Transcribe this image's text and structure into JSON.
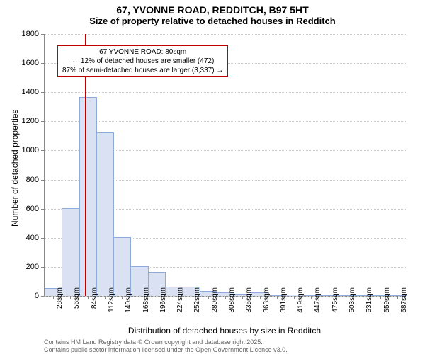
{
  "title": "67, YVONNE ROAD, REDDITCH, B97 5HT",
  "subtitle": "Size of property relative to detached houses in Redditch",
  "ylabel": "Number of detached properties",
  "xlabel": "Distribution of detached houses by size in Redditch",
  "footer_line1": "Contains HM Land Registry data © Crown copyright and database right 2025.",
  "footer_line2": "Contains public sector information licensed under the Open Government Licence v3.0.",
  "chart": {
    "type": "histogram",
    "ylim": [
      0,
      1800
    ],
    "yticks": [
      0,
      200,
      400,
      600,
      800,
      1000,
      1200,
      1400,
      1600,
      1800
    ],
    "xticks": [
      "28sqm",
      "56sqm",
      "84sqm",
      "112sqm",
      "140sqm",
      "168sqm",
      "196sqm",
      "224sqm",
      "252sqm",
      "280sqm",
      "308sqm",
      "335sqm",
      "363sqm",
      "391sqm",
      "419sqm",
      "447sqm",
      "475sqm",
      "503sqm",
      "531sqm",
      "559sqm",
      "587sqm"
    ],
    "values": [
      50,
      600,
      1360,
      1120,
      400,
      200,
      160,
      60,
      60,
      30,
      20,
      10,
      20,
      0,
      5,
      0,
      0,
      0,
      0,
      0,
      0
    ],
    "bar_fill": "#d9e1f2",
    "bar_stroke": "#8ea9db",
    "grid_color": "#cccccc",
    "background_color": "#ffffff",
    "marker": {
      "position_index": 2,
      "position_offset": -0.15,
      "color": "#c00000",
      "label_line1": "67 YVONNE ROAD: 80sqm",
      "label_line2": "← 12% of detached houses are smaller (472)",
      "label_line3": "87% of semi-detached houses are larger (3,337) →"
    }
  }
}
